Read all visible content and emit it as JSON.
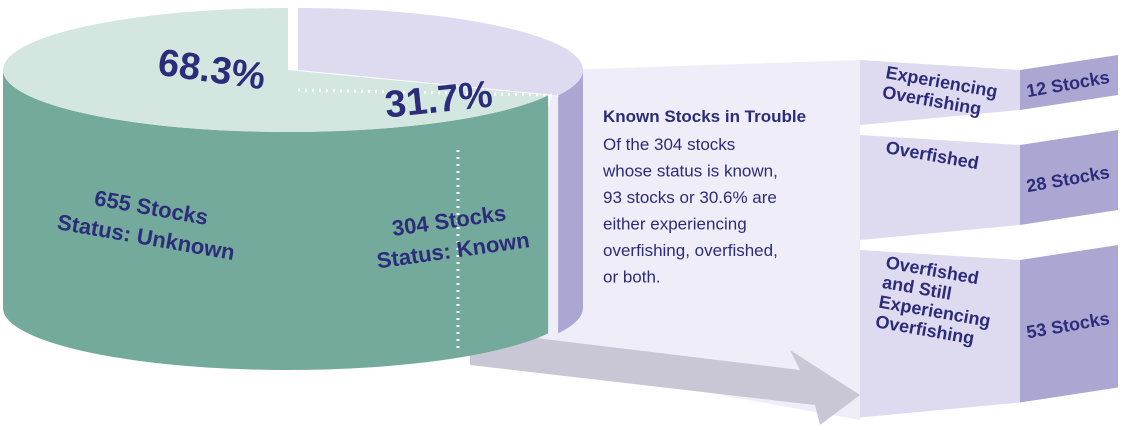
{
  "chart_data": {
    "type": "pie",
    "labels": [
      [
        "655 Stocks",
        "Status: Unknown"
      ],
      [
        "304 Stocks",
        "Status: Known"
      ]
    ],
    "values": [
      68.3,
      31.7
    ],
    "value_labels": [
      "68.3%",
      "31.7%"
    ],
    "colors": [
      "#74aa9c",
      "#aca6d2"
    ],
    "top_colors": [
      "#d3e6e0",
      "#dedaef"
    ],
    "breakdown": {
      "title": "Known Stocks in Trouble",
      "text": [
        "Of the 304 stocks",
        "whose status is known,",
        "93 stocks or 30.6% are",
        "either experiencing",
        "overfishing, overfished,",
        "or both."
      ],
      "labels": [
        [
          "Experiencing",
          "Overfishing"
        ],
        [
          "Overfished"
        ],
        [
          "Overfished",
          "and Still",
          "Experiencing",
          "Overfishing"
        ]
      ],
      "values": [
        12,
        28,
        53
      ],
      "value_labels": [
        "12 Stocks",
        "28 Stocks",
        "53 Stocks"
      ]
    }
  }
}
